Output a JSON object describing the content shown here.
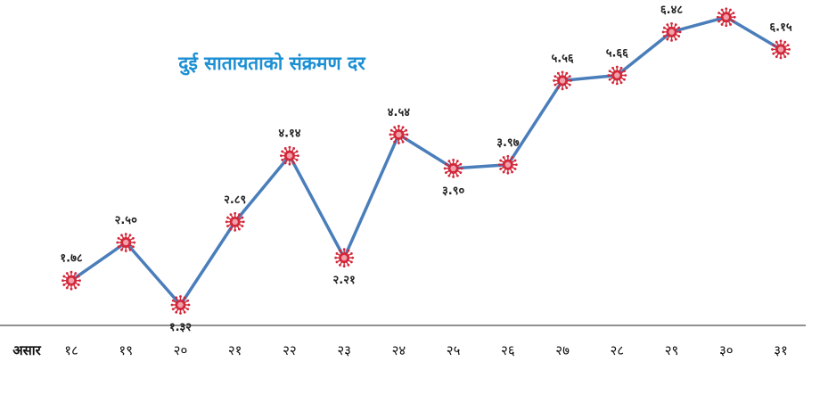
{
  "chart_data": {
    "type": "line",
    "title": "दुई सातायताको संक्रमण दर",
    "xlabel": "असार",
    "ylabel": "",
    "categories": [
      "१८",
      "१९",
      "२०",
      "२१",
      "२२",
      "२३",
      "२४",
      "२५",
      "२६",
      "२७",
      "२८",
      "२९",
      "३०",
      "३१"
    ],
    "values": [
      1.78,
      2.5,
      1.32,
      2.89,
      4.14,
      2.21,
      4.54,
      3.9,
      3.97,
      5.56,
      5.66,
      6.48,
      6.76,
      6.15
    ],
    "data_labels": [
      "१.७८",
      "२.५०",
      "१.३२",
      "२.८९",
      "४.१४",
      "२.२१",
      "४.५४",
      "३.९०",
      "३.९७",
      "५.५६",
      "५.६६",
      "६.४८",
      "६.७६",
      "६.१५"
    ],
    "ylim": [
      0,
      7
    ],
    "grid": false,
    "colors": {
      "line": "#4a7ebb",
      "marker": "#d2283a",
      "title": "#1b8fd4",
      "axis": "#222222"
    },
    "marker_icon": "virus-icon"
  }
}
